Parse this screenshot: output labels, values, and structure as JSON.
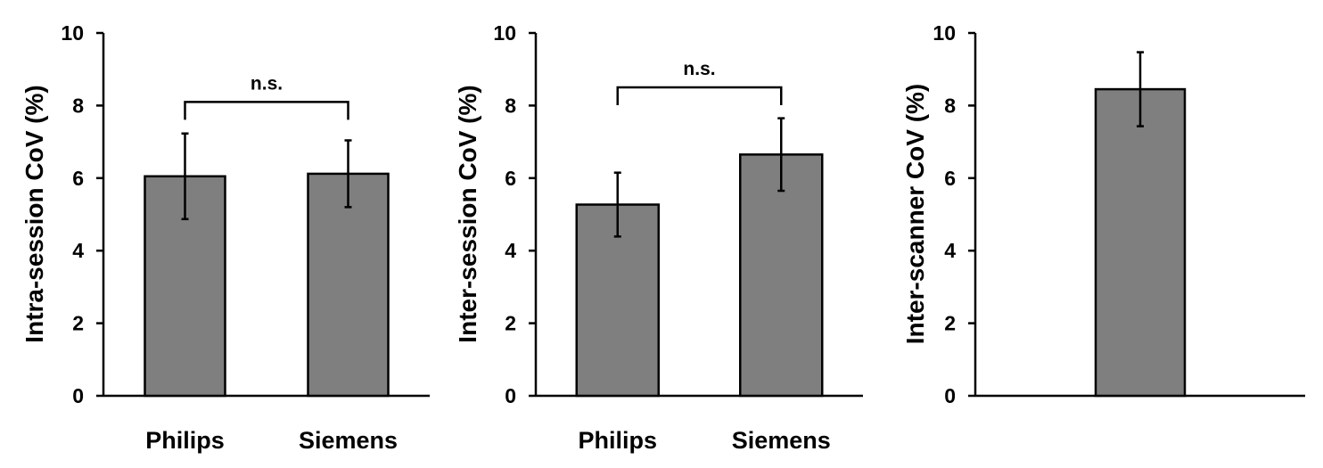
{
  "colors": {
    "bar_fill": "#7f7f7f",
    "bar_stroke": "#000000"
  },
  "chart_data": [
    {
      "type": "bar",
      "ylabel": "Intra-session CoV (%)",
      "xlabel": "",
      "categories": [
        "Philips",
        "Siemens"
      ],
      "values": [
        6.05,
        6.12
      ],
      "error": [
        1.18,
        0.92
      ],
      "ylim": [
        0,
        10
      ],
      "yticks": [
        0,
        2,
        4,
        6,
        8,
        10
      ],
      "grid": false,
      "annotation": {
        "text": "n.s.",
        "between": [
          0,
          1
        ],
        "y": 8.1
      }
    },
    {
      "type": "bar",
      "ylabel": "Inter-session CoV (%)",
      "xlabel": "",
      "categories": [
        "Philips",
        "Siemens"
      ],
      "values": [
        5.27,
        6.65
      ],
      "error": [
        0.88,
        1.0
      ],
      "ylim": [
        0,
        10
      ],
      "yticks": [
        0,
        2,
        4,
        6,
        8,
        10
      ],
      "grid": false,
      "annotation": {
        "text": "n.s.",
        "between": [
          0,
          1
        ],
        "y": 8.5
      }
    },
    {
      "type": "bar",
      "ylabel": "Inter-scanner CoV (%)",
      "xlabel": "",
      "categories": [
        ""
      ],
      "values": [
        8.45
      ],
      "error": [
        1.02
      ],
      "ylim": [
        0,
        10
      ],
      "yticks": [
        0,
        2,
        4,
        6,
        8,
        10
      ],
      "grid": false
    }
  ]
}
